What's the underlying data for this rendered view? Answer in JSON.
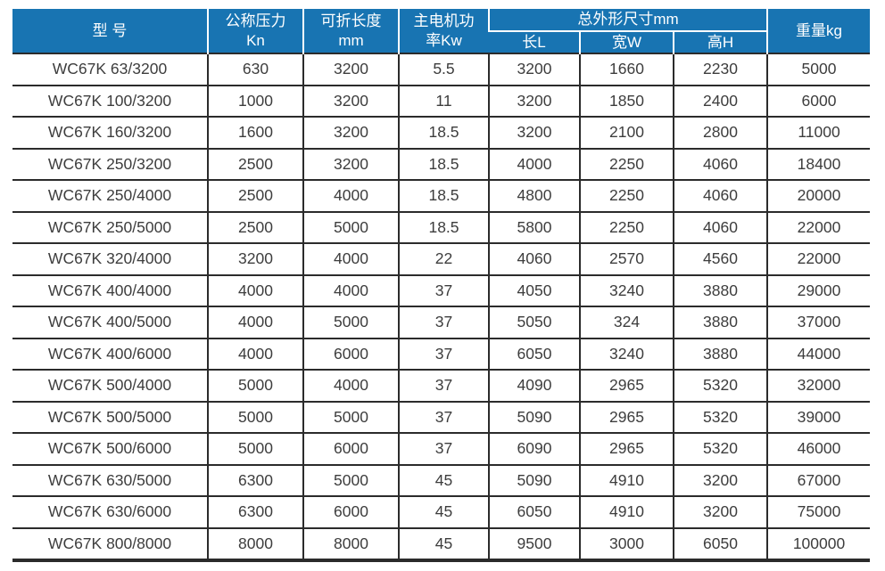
{
  "table": {
    "headers": {
      "model": "型 号",
      "pressure_line1": "公称压力",
      "pressure_line2": "Kn",
      "length_line1": "可折长度",
      "length_line2": "mm",
      "power_line1": "主电机功",
      "power_line2": "率Kw",
      "dims_group": "总外形尺寸mm",
      "dim_l": "长L",
      "dim_w": "宽W",
      "dim_h": "高H",
      "weight": "重量kg"
    },
    "rows": [
      [
        "WC67K 63/3200",
        "630",
        "3200",
        "5.5",
        "3200",
        "1660",
        "2230",
        "5000"
      ],
      [
        "WC67K 100/3200",
        "1000",
        "3200",
        "11",
        "3200",
        "1850",
        "2400",
        "6000"
      ],
      [
        "WC67K 160/3200",
        "1600",
        "3200",
        "18.5",
        "3200",
        "2100",
        "2800",
        "11000"
      ],
      [
        "WC67K 250/3200",
        "2500",
        "3200",
        "18.5",
        "4000",
        "2250",
        "4060",
        "18400"
      ],
      [
        "WC67K 250/4000",
        "2500",
        "4000",
        "18.5",
        "4800",
        "2250",
        "4060",
        "20000"
      ],
      [
        "WC67K 250/5000",
        "2500",
        "5000",
        "18.5",
        "5800",
        "2250",
        "4060",
        "22000"
      ],
      [
        "WC67K 320/4000",
        "3200",
        "4000",
        "22",
        "4060",
        "2570",
        "4560",
        "22000"
      ],
      [
        "WC67K 400/4000",
        "4000",
        "4000",
        "37",
        "4050",
        "3240",
        "3880",
        "29000"
      ],
      [
        "WC67K 400/5000",
        "4000",
        "5000",
        "37",
        "5050",
        "324",
        "3880",
        "37000"
      ],
      [
        "WC67K 400/6000",
        "4000",
        "6000",
        "37",
        "6050",
        "3240",
        "3880",
        "44000"
      ],
      [
        "WC67K 500/4000",
        "5000",
        "4000",
        "37",
        "4090",
        "2965",
        "5320",
        "32000"
      ],
      [
        "WC67K 500/5000",
        "5000",
        "5000",
        "37",
        "5090",
        "2965",
        "5320",
        "39000"
      ],
      [
        "WC67K 500/6000",
        "5000",
        "6000",
        "37",
        "6090",
        "2965",
        "5320",
        "46000"
      ],
      [
        "WC67K 630/5000",
        "6300",
        "5000",
        "45",
        "5090",
        "4910",
        "3200",
        "67000"
      ],
      [
        "WC67K 630/6000",
        "6300",
        "6000",
        "45",
        "6050",
        "4910",
        "3200",
        "75000"
      ],
      [
        "WC67K 800/8000",
        "8000",
        "8000",
        "45",
        "9500",
        "3000",
        "6050",
        "100000"
      ]
    ],
    "colors": {
      "header_bg": "#1874B2",
      "header_text": "#FFFFFF",
      "body_text": "#3D3D3D",
      "border": "#2B2B2B"
    }
  }
}
